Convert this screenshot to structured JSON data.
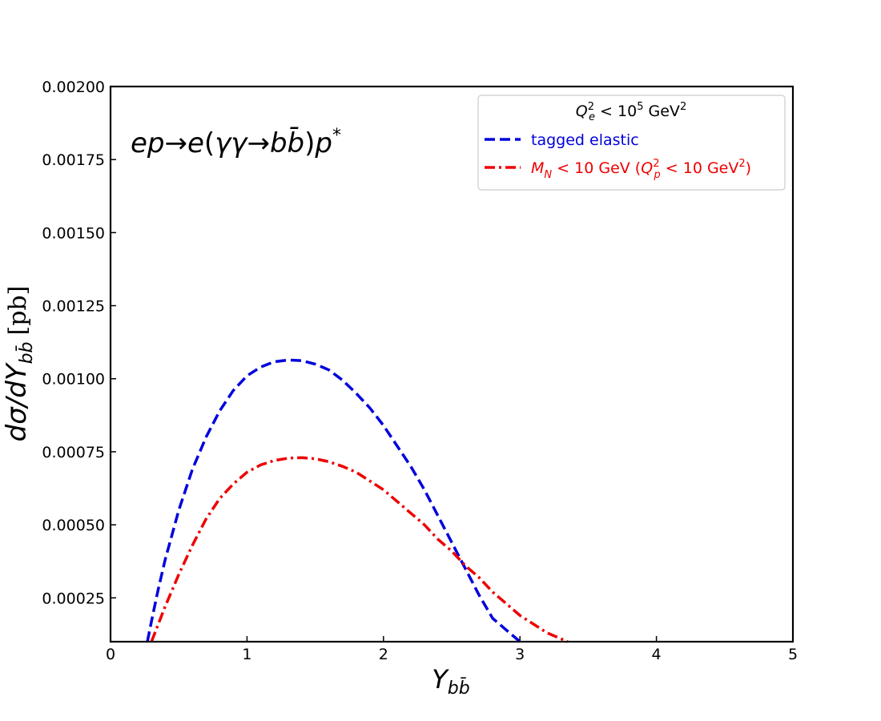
{
  "chart_data": {
    "type": "line",
    "xlabel": "Y",
    "xlabel_sub": "bb̄",
    "ylabel": "dσ/dY",
    "ylabel_sub": "bb̄",
    "ylabel_unit": "[pb]",
    "xlim": [
      0,
      5
    ],
    "ylim": [
      0.0001,
      0.002
    ],
    "x_ticks": [
      "0",
      "1",
      "2",
      "3",
      "4",
      "5"
    ],
    "y_ticks": [
      "0.00025",
      "0.00050",
      "0.00075",
      "0.00100",
      "0.00125",
      "0.00150",
      "0.00175",
      "0.00200"
    ],
    "grid": false,
    "annotation": {
      "lhs": "ep",
      "arrow": "→",
      "e": "e",
      "open": "(",
      "gg": "γγ",
      "arrow2": "→",
      "b": "b",
      "bbar": "b̄",
      "close": ")",
      "p": "p",
      "star": "*"
    },
    "legend": {
      "position": "top-right",
      "title_pre": "Q",
      "title_sup": "2",
      "title_sub": "e",
      "title_post": " <  10",
      "title_exp": "5",
      "title_unit": " GeV",
      "title_unit_sup": "2"
    },
    "series": [
      {
        "name": "tagged elastic",
        "color": "#0000dd",
        "dash": "dashed",
        "x": [
          0.27,
          0.3,
          0.35,
          0.4,
          0.5,
          0.6,
          0.7,
          0.8,
          0.9,
          1.0,
          1.1,
          1.2,
          1.3,
          1.4,
          1.5,
          1.6,
          1.7,
          1.8,
          1.9,
          2.0,
          2.1,
          2.2,
          2.3,
          2.4,
          2.5,
          2.6,
          2.7,
          2.8,
          2.9,
          3.0
        ],
        "y": [
          0.0001,
          0.00017,
          0.00028,
          0.00038,
          0.00055,
          0.00069,
          0.0008,
          0.00089,
          0.00096,
          0.00101,
          0.00104,
          0.001058,
          0.001064,
          0.001062,
          0.00105,
          0.00103,
          0.000995,
          0.00095,
          0.0009,
          0.00084,
          0.00077,
          0.0007,
          0.00062,
          0.00053,
          0.00044,
          0.00035,
          0.00026,
          0.00018,
          0.00014,
          0.0001
        ]
      },
      {
        "legend_pre": "M",
        "legend_sub": "N",
        "legend_mid": " <  10 GeV (",
        "legend_q": "Q",
        "legend_q_sup": "2",
        "legend_q_sub": "p",
        "legend_post": " <  10 GeV",
        "legend_post_sup": "2",
        "legend_close": ")",
        "color": "#ee0000",
        "dash": "dashdot",
        "x": [
          0.3,
          0.35,
          0.4,
          0.5,
          0.6,
          0.7,
          0.8,
          0.9,
          1.0,
          1.1,
          1.2,
          1.3,
          1.4,
          1.5,
          1.6,
          1.7,
          1.8,
          1.9,
          2.0,
          2.1,
          2.2,
          2.3,
          2.4,
          2.5,
          2.6,
          2.7,
          2.8,
          2.9,
          3.0,
          3.1,
          3.2,
          3.35
        ],
        "y": [
          0.0001,
          0.00016,
          0.00022,
          0.00033,
          0.00043,
          0.00052,
          0.00059,
          0.00064,
          0.00068,
          0.000705,
          0.00072,
          0.000728,
          0.00073,
          0.000726,
          0.000716,
          0.0007,
          0.00068,
          0.00065,
          0.00062,
          0.00058,
          0.00054,
          0.0005,
          0.00045,
          0.00041,
          0.00036,
          0.00032,
          0.00027,
          0.00023,
          0.00019,
          0.00016,
          0.00013,
          0.0001
        ]
      }
    ]
  }
}
